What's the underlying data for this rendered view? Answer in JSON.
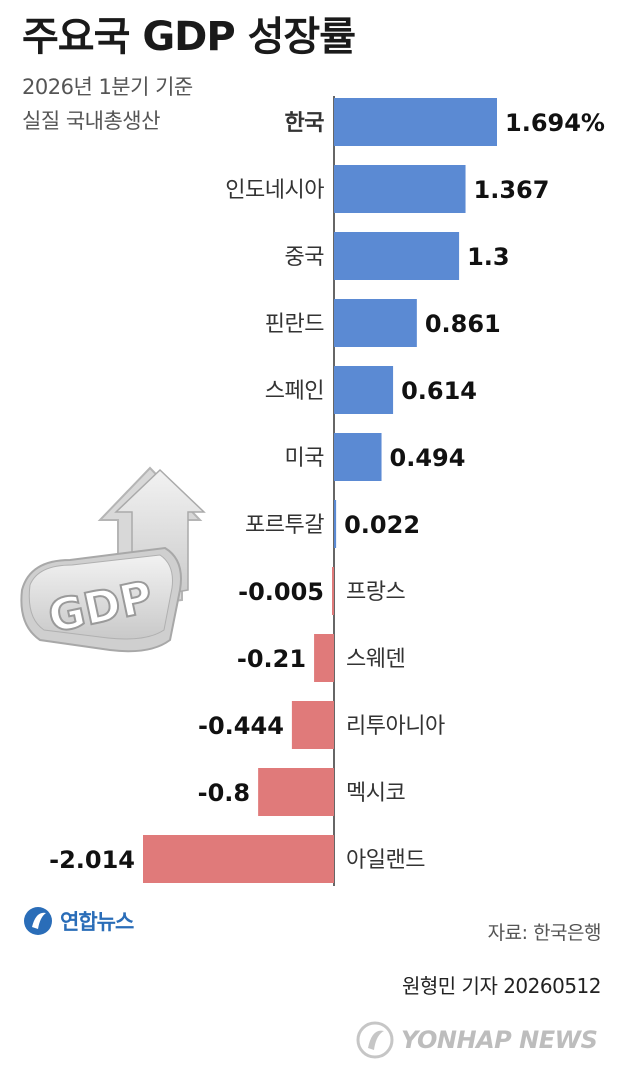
{
  "header": {
    "title": "주요국 GDP 성장률",
    "subtitle_line1": "2026년 1분기 기준",
    "subtitle_line2": "실질 국내총생산"
  },
  "chart_data": {
    "type": "bar",
    "orientation": "horizontal",
    "categories": [
      "한국",
      "인도네시아",
      "중국",
      "핀란드",
      "스페인",
      "미국",
      "포르투갈",
      "프랑스",
      "스웨덴",
      "리투아니아",
      "멕시코",
      "아일랜드"
    ],
    "values": [
      1.694,
      1.367,
      1.3,
      0.861,
      0.614,
      0.494,
      0.022,
      -0.005,
      -0.21,
      -0.444,
      -0.8,
      -2.014
    ],
    "value_labels": [
      "1.694%",
      "1.367",
      "1.3",
      "0.861",
      "0.614",
      "0.494",
      "0.022",
      "-0.005",
      "-0.21",
      "-0.444",
      "-0.8",
      "-2.014"
    ],
    "highlight_category": "한국",
    "positive_color": "#5b8ad3",
    "negative_color": "#e07a7a",
    "xlim": [
      -2.014,
      1.694
    ],
    "grid": false,
    "legend": "none",
    "decoration_label": "GDP"
  },
  "footer": {
    "logo_text": "연합뉴스",
    "source": "자료: 한국은행",
    "byline": "원형민 기자 20260512",
    "watermark": "YONHAP NEWS"
  }
}
